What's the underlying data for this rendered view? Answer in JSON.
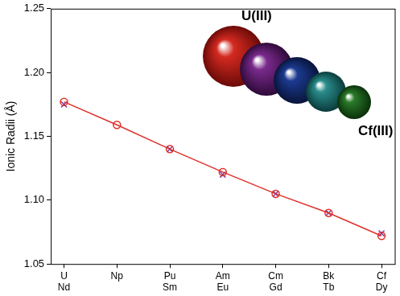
{
  "chart_data": {
    "type": "line",
    "y_label": "Ionic Radii (Å)",
    "categories": [
      "U\nNd",
      "Np",
      "Pu\nSm",
      "Am\nEu",
      "Cm\nGd",
      "Bk\nTb",
      "Cf\nDy"
    ],
    "series": [
      {
        "color": "#e0302a",
        "marker": "circle",
        "line_style": "solid",
        "values": [
          1.177,
          1.159,
          1.14,
          1.122,
          1.105,
          1.09,
          1.072
        ]
      },
      {
        "color": "#7b3fa0",
        "marker": "x",
        "line_style": "none",
        "values": [
          1.175,
          null,
          1.14,
          1.12,
          1.105,
          1.09,
          1.074
        ]
      }
    ],
    "ylim": [
      1.05,
      1.25
    ],
    "yticks": [
      {
        "value": 1.05,
        "label": "1.05"
      },
      {
        "value": 1.1,
        "label": "1.10"
      },
      {
        "value": 1.15,
        "label": "1.15"
      },
      {
        "value": 1.2,
        "label": "1.20"
      },
      {
        "value": 1.25,
        "label": "1.25"
      }
    ],
    "grid": false,
    "annotations": [
      {
        "text": "U(III)"
      },
      {
        "text": "Cf(III)"
      }
    ]
  }
}
